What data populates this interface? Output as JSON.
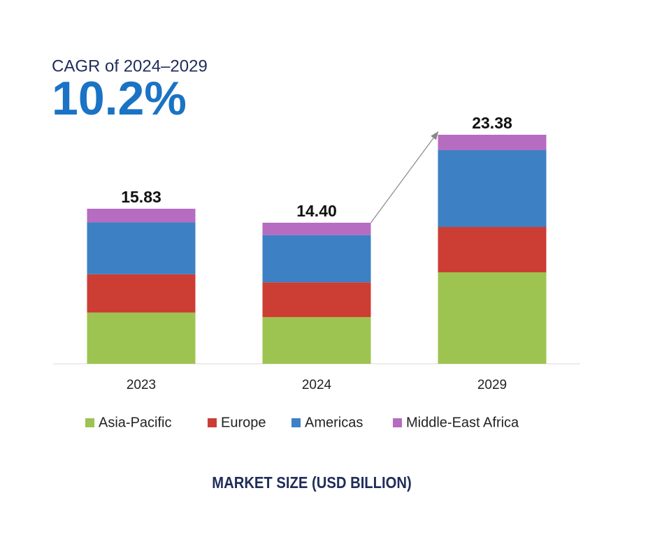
{
  "chart_data": {
    "type": "stacked_bar",
    "annotations": {
      "cagr_label": "CAGR of 2024–2029",
      "cagr_value": "10.2%"
    },
    "xlabel": "MARKET SIZE (USD BILLION)",
    "categories": [
      "2023",
      "2024",
      "2029"
    ],
    "series": [
      {
        "name": "Asia-Pacific",
        "color": "#9dc450",
        "values": [
          5.23,
          4.76,
          9.34
        ]
      },
      {
        "name": "Europe",
        "color": "#cc3d34",
        "values": [
          3.91,
          3.56,
          4.63
        ]
      },
      {
        "name": "Americas",
        "color": "#3d80c4",
        "values": [
          5.3,
          4.82,
          7.84
        ]
      },
      {
        "name": "Middle-East Africa",
        "color": "#b66cc0",
        "values": [
          1.39,
          1.26,
          1.57
        ]
      }
    ],
    "totals": [
      15.83,
      14.4,
      23.38
    ],
    "total_labels": [
      "15.83",
      "14.40",
      "23.38"
    ],
    "legend": "bottom"
  }
}
